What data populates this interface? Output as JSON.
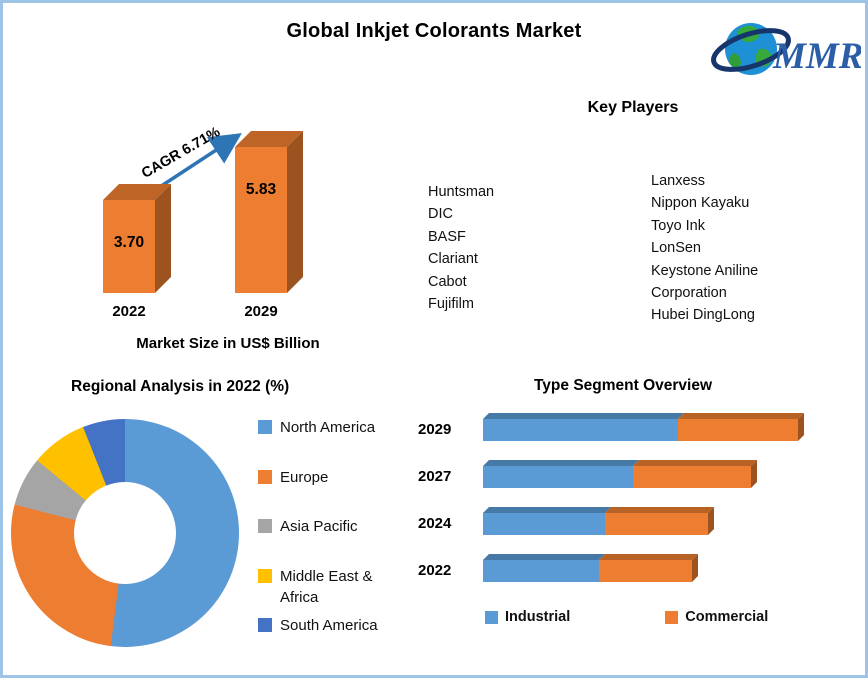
{
  "header": {
    "title": "Global Inkjet Colorants Market"
  },
  "logo": {
    "text": "MMR"
  },
  "key_players": {
    "title": "Key Players",
    "column1": [
      "Huntsman",
      "DIC",
      "BASF",
      "Clariant",
      "Cabot",
      "Fujifilm"
    ],
    "column2": [
      "Lanxess",
      "Nippon Kayaku",
      "Toyo Ink",
      "LonSen",
      "Keystone Aniline Corporation",
      "Hubei DingLong"
    ]
  },
  "chart_data": [
    {
      "id": "market_size",
      "type": "bar",
      "title": "Global Inkjet Colorants Market",
      "categories": [
        "2022",
        "2029"
      ],
      "values": [
        3.7,
        5.83
      ],
      "value_labels": [
        "3.70",
        "5.83"
      ],
      "annotation": "CAGR 6.71%",
      "xlabel": "Market Size in US$ Billion",
      "bar_color": "#ED7D31",
      "ylim": [
        0,
        6.5
      ]
    },
    {
      "id": "regional_analysis",
      "type": "pie",
      "subtype": "donut",
      "title": "Regional Analysis in 2022 (%)",
      "labels": [
        "North America",
        "Europe",
        "Asia Pacific",
        "Middle East & Africa",
        "South America"
      ],
      "values": [
        52,
        27,
        7,
        8,
        6
      ],
      "colors": [
        "#5B9BD5",
        "#ED7D31",
        "#A5A5A5",
        "#FFC000",
        "#4472C4"
      ],
      "legend_position": "right"
    },
    {
      "id": "type_segment",
      "type": "bar",
      "subtype": "horizontal-stacked",
      "title": "Type Segment Overview",
      "categories": [
        "2029",
        "2027",
        "2024",
        "2022"
      ],
      "series": [
        {
          "name": "Industrial",
          "color": "#5B9BD5",
          "values": [
            195,
            150,
            122,
            116
          ]
        },
        {
          "name": "Commercial",
          "color": "#ED7D31",
          "values": [
            120,
            118,
            103,
            93
          ]
        }
      ],
      "unit": "relative length (no axis shown)",
      "legend_position": "bottom"
    }
  ]
}
